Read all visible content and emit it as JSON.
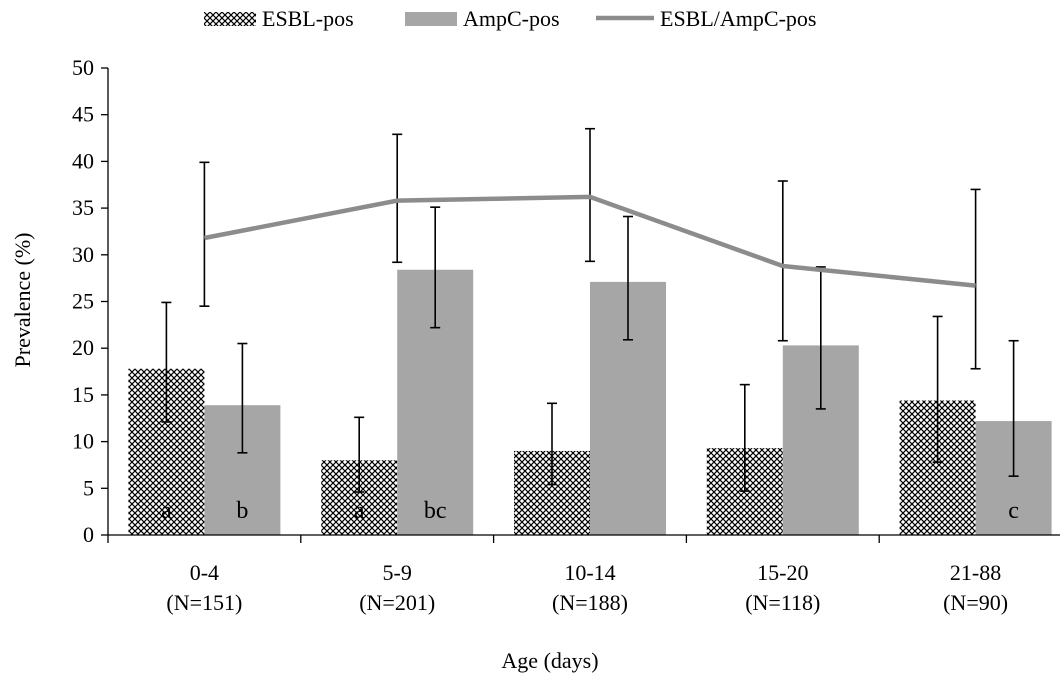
{
  "chart_data": {
    "type": "bar",
    "xlabel": "Age (days)",
    "ylabel": "Prevalence (%)",
    "ylim": [
      0,
      50
    ],
    "ytick_step": 5,
    "grid": false,
    "legend_position": "top",
    "categories": [
      {
        "line1": "0-4",
        "line2": "(N=151)"
      },
      {
        "line1": "5-9",
        "line2": "(N=201)"
      },
      {
        "line1": "10-14",
        "line2": "(N=188)"
      },
      {
        "line1": "15-20",
        "line2": "(N=118)"
      },
      {
        "line1": "21-88",
        "line2": "(N=90)"
      }
    ],
    "series": [
      {
        "name": "ESBL-pos",
        "type": "bar",
        "pattern": "crosshatch",
        "color": "#000000",
        "values": [
          17.8,
          8.0,
          9.0,
          9.3,
          14.4
        ],
        "error_low": [
          12.1,
          4.6,
          5.4,
          4.7,
          7.8
        ],
        "error_high": [
          24.9,
          12.6,
          14.1,
          16.1,
          23.4
        ],
        "annotations": [
          "a",
          "a",
          "",
          "",
          ""
        ]
      },
      {
        "name": "AmpC-pos",
        "type": "bar",
        "color": "#a6a6a6",
        "values": [
          13.9,
          28.4,
          27.1,
          20.3,
          12.2
        ],
        "error_low": [
          8.8,
          22.2,
          20.9,
          13.5,
          6.3
        ],
        "error_high": [
          20.5,
          35.1,
          34.1,
          28.7,
          20.8
        ],
        "annotations": [
          "b",
          "bc",
          "",
          "",
          "c"
        ]
      },
      {
        "name": "ESBL/AmpC-pos",
        "type": "line",
        "color": "#8c8c8c",
        "values": [
          31.8,
          35.8,
          36.2,
          28.8,
          26.7
        ],
        "error_low": [
          24.5,
          29.2,
          29.3,
          20.8,
          17.8
        ],
        "error_high": [
          39.9,
          42.9,
          43.5,
          37.9,
          37.0
        ]
      }
    ]
  }
}
